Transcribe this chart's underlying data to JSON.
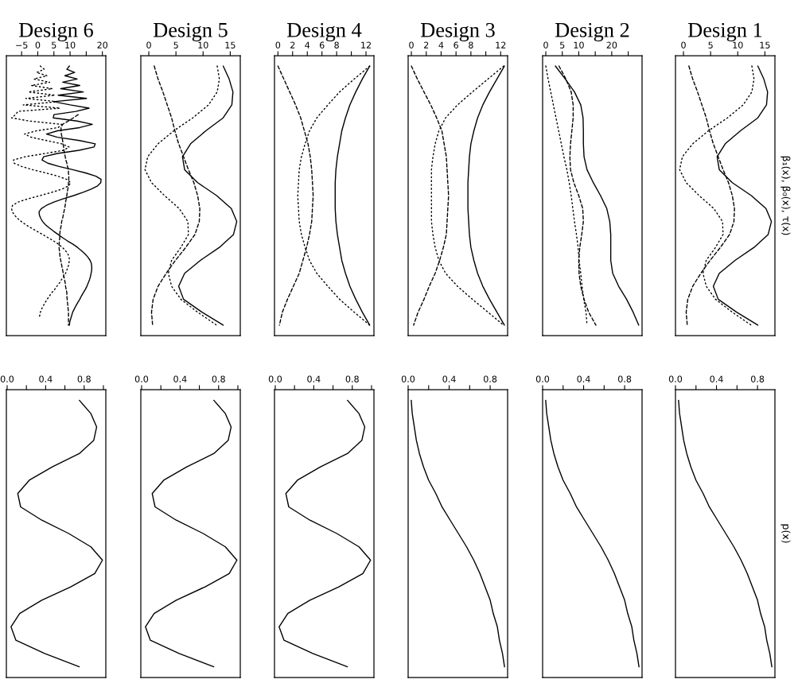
{
  "chart_data": [
    {
      "type": "line",
      "title": "Design 6",
      "orientation": "horizontal",
      "tick_labels": "x",
      "xlim": [
        -9.72,
        21.06
      ],
      "xticks": [
        {
          "value": -5,
          "label": "−5"
        },
        0,
        5,
        10,
        {
          "value": 15,
          "label": null
        },
        20
      ],
      "categories": [
        null,
        null,
        null,
        null,
        null,
        null,
        null,
        null,
        null,
        null,
        null,
        null,
        null,
        null,
        null,
        null,
        null,
        null,
        null,
        null,
        null,
        null,
        null,
        null,
        null,
        null,
        null,
        null,
        null,
        null,
        null,
        null,
        null,
        null,
        null,
        null,
        null,
        null,
        null,
        null,
        null,
        null,
        null,
        null,
        null,
        null,
        null,
        null,
        null,
        null,
        null,
        null,
        null,
        null,
        null,
        null,
        null,
        null,
        null,
        null,
        null,
        null,
        null,
        null,
        null,
        null,
        null,
        null,
        null,
        null,
        null,
        null,
        null,
        null,
        null,
        null,
        null,
        null,
        null,
        null,
        null
      ],
      "series": [
        {
          "color": "#000000",
          "line_style": "solid",
          "values": [
            9.8,
            9.0,
            11.4,
            8.4,
            12.2,
            7.7,
            13.0,
            7.1,
            14.1,
            6.3,
            15.1,
            4.9,
            10.0,
            15.9,
            11.8,
            5.0,
            4.8,
            12.2,
            16.9,
            13.0,
            6.1,
            2.7,
            6.1,
            12.9,
            17.8,
            17.4,
            12.8,
            6.1,
            1.8,
            1.3,
            3.1,
            6.6,
            10.8,
            14.8,
            18.0,
            19.6,
            19.5,
            18.5,
            16.5,
            14.0,
            11.1,
            7.8,
            5.0,
            2.7,
            1.1,
            0.4,
            0.5,
            0.9,
            1.5,
            2.4,
            3.6,
            4.9,
            6.3,
            7.7,
            9.2,
            10.9,
            12.3,
            13.5,
            14.6,
            15.5,
            16.2,
            16.6,
            16.7,
            16.7,
            16.5,
            16.3,
            16.0,
            15.6,
            15.2,
            14.7,
            14.1,
            13.5,
            13.0,
            12.4,
            11.8,
            11.3,
            10.8,
            10.5,
            10.2,
            9.9,
            9.8
          ]
        },
        {
          "color": "#000000",
          "line_style": "dashed",
          "values": [
            null,
            null,
            null,
            null,
            null,
            null,
            null,
            null,
            null,
            null,
            null,
            null,
            null,
            null,
            null,
            12.5,
            11.0,
            9.4,
            7.7,
            7.2,
            7.2,
            7.3,
            7.5,
            7.7,
            7.8,
            8.0,
            8.1,
            8.3,
            8.5,
            8.7,
            9.0,
            9.2,
            9.5,
            9.5,
            9.6,
            9.6,
            9.5,
            9.5,
            9.3,
            9.1,
            9.0,
            8.8,
            8.6,
            8.5,
            8.3,
            8.1,
            7.9,
            7.7,
            7.4,
            7.3,
            7.1,
            6.9,
            6.8,
            6.8,
            6.7,
            6.6,
            6.6,
            6.7,
            6.8,
            6.9,
            7.1,
            7.3,
            7.5,
            7.7,
            7.9,
            8.1,
            8.3,
            8.5,
            8.6,
            8.8,
            9.0,
            9.0,
            9.1,
            9.2,
            9.3,
            9.4,
            9.5,
            9.5,
            9.5,
            9.5,
            9.5
          ]
        },
        {
          "color": "#000000",
          "line_style": "dotted",
          "values": [
            0.8,
            2.0,
            -0.4,
            2.9,
            -1.2,
            3.7,
            -2.0,
            4.5,
            -2.9,
            5.3,
            -3.7,
            6.1,
            -4.5,
            6.9,
            -6.1,
            -6.9,
            -8.1,
            -2.5,
            7.4,
            6.3,
            -0.4,
            -4.1,
            -2.0,
            2.7,
            7.4,
            9.7,
            8.1,
            2.3,
            -3.9,
            -7.5,
            -7.3,
            -5.0,
            -1.6,
            2.5,
            6.2,
            9.0,
            10.2,
            9.5,
            7.5,
            4.3,
            0.7,
            -3.1,
            -6.1,
            -7.8,
            -8.1,
            -7.9,
            -7.2,
            -6.3,
            -5.1,
            -3.7,
            -2.0,
            -0.3,
            1.5,
            3.2,
            4.9,
            6.4,
            7.6,
            8.6,
            9.3,
            9.7,
            9.8,
            9.6,
            9.4,
            9.0,
            8.6,
            8.0,
            7.3,
            6.7,
            5.9,
            5.2,
            4.3,
            3.6,
            2.9,
            2.3,
            1.7,
            1.2,
            0.8,
            0.6,
            0.4,
            null,
            null
          ]
        }
      ]
    },
    {
      "type": "line",
      "title": "Design 5",
      "orientation": "horizontal",
      "tick_labels": "x",
      "xlim": [
        -1.47,
        16.85
      ],
      "xticks": [
        0,
        5,
        10,
        15
      ],
      "categories": [
        null,
        null,
        null,
        null,
        null,
        null,
        null,
        null,
        null,
        null,
        null,
        null,
        null,
        null,
        null,
        null,
        null,
        null,
        null,
        null,
        null
      ],
      "series": [
        {
          "color": "#000000",
          "line_style": "solid",
          "values": [
            13.7,
            14.8,
            15.5,
            15.3,
            13.7,
            10.5,
            7.7,
            6.2,
            6.6,
            9.0,
            12.5,
            15.2,
            16.2,
            15.6,
            13.0,
            9.5,
            6.6,
            5.5,
            6.4,
            9.8,
            13.7
          ]
        },
        {
          "color": "#000000",
          "line_style": "dashed",
          "values": [
            1.0,
            1.7,
            2.6,
            3.4,
            4.2,
            4.8,
            5.5,
            6.4,
            7.3,
            8.3,
            9.0,
            9.4,
            9.3,
            8.5,
            6.8,
            4.9,
            3.2,
            1.7,
            0.8,
            0.5,
            0.7
          ]
        },
        {
          "color": "#000000",
          "line_style": "dotted",
          "values": [
            12.6,
            13.0,
            12.6,
            11.0,
            8.1,
            4.6,
            1.7,
            -0.2,
            -0.7,
            0.5,
            2.9,
            5.6,
            7.2,
            7.3,
            5.9,
            4.2,
            3.6,
            4.2,
            5.9,
            9.0,
            12.5
          ]
        }
      ]
    },
    {
      "type": "line",
      "title": "Design 4",
      "orientation": "horizontal",
      "tick_labels": "x",
      "xlim": [
        -0.47,
        13.08
      ],
      "xticks": [
        0,
        2,
        4,
        6,
        8,
        {
          "value": 10,
          "label": null
        },
        12
      ],
      "categories": [
        null,
        null,
        null,
        null,
        null,
        null,
        null,
        null,
        null,
        null,
        null,
        null,
        null,
        null,
        null,
        null,
        null,
        null,
        null,
        null,
        null
      ],
      "series": [
        {
          "color": "#000000",
          "line_style": "solid",
          "values": [
            12.5,
            11.5,
            10.6,
            9.8,
            9.2,
            8.7,
            8.4,
            8.1,
            7.9,
            7.8,
            7.8,
            7.8,
            7.9,
            8.1,
            8.4,
            8.7,
            9.2,
            9.8,
            10.6,
            11.5,
            12.5
          ]
        },
        {
          "color": "#000000",
          "line_style": "dashed",
          "values": [
            0,
            0.8,
            1.6,
            2.4,
            3.1,
            3.6,
            4.1,
            4.4,
            4.6,
            4.7,
            4.8,
            4.7,
            4.6,
            4.3,
            3.9,
            3.4,
            2.9,
            2.1,
            1.3,
            0.6,
            0.2
          ]
        },
        {
          "color": "#000000",
          "line_style": "dotted",
          "values": [
            12.5,
            10.4,
            8.4,
            6.8,
            5.3,
            4.3,
            3.7,
            3.2,
            2.9,
            2.8,
            2.7,
            2.8,
            2.9,
            3.2,
            3.7,
            4.3,
            5.3,
            6.8,
            8.4,
            10.4,
            12.5
          ]
        }
      ]
    },
    {
      "type": "line",
      "title": "Design 3",
      "orientation": "horizontal",
      "tick_labels": "x",
      "xlim": [
        -0.43,
        12.93
      ],
      "xticks": [
        0,
        2,
        4,
        6,
        8,
        {
          "value": 10,
          "label": null
        },
        12
      ],
      "categories": [
        null,
        null,
        null,
        null,
        null,
        null,
        null,
        null,
        null,
        null,
        null,
        null,
        null,
        null,
        null,
        null,
        null,
        null,
        null,
        null,
        null
      ],
      "series": [
        {
          "color": "#000000",
          "line_style": "solid",
          "values": [
            12.5,
            11.5,
            10.5,
            9.6,
            8.9,
            8.4,
            8.0,
            7.8,
            7.7,
            7.6,
            7.6,
            7.6,
            7.7,
            7.8,
            8.0,
            8.4,
            8.9,
            9.6,
            10.5,
            11.5,
            12.5
          ]
        },
        {
          "color": "#000000",
          "line_style": "dashed",
          "values": [
            0,
            0.8,
            1.7,
            2.6,
            3.4,
            4.1,
            4.4,
            4.7,
            4.8,
            4.9,
            5.0,
            4.9,
            4.8,
            4.7,
            4.3,
            3.8,
            3.2,
            2.4,
            1.7,
            0.9,
            0.3
          ]
        },
        {
          "color": "#000000",
          "line_style": "dotted",
          "values": [
            12.4,
            10.3,
            8.2,
            6.2,
            4.6,
            3.7,
            3.2,
            2.9,
            2.7,
            2.7,
            2.7,
            2.7,
            2.7,
            2.9,
            3.2,
            3.7,
            4.6,
            6.2,
            8.2,
            10.3,
            12.4
          ]
        }
      ]
    },
    {
      "type": "line",
      "title": "Design 2",
      "orientation": "horizontal",
      "tick_labels": "x",
      "xlim": [
        -0.97,
        29.2
      ],
      "xticks": [
        0,
        5,
        10,
        {
          "value": 15,
          "label": null
        },
        20,
        {
          "value": 25,
          "label": null
        }
      ],
      "categories": [
        null,
        null,
        null,
        null,
        null,
        null,
        null,
        null,
        null,
        null,
        null,
        null,
        null,
        null,
        null,
        null,
        null,
        null,
        null,
        null,
        null
      ],
      "series": [
        {
          "color": "#000000",
          "line_style": "solid",
          "values": [
            2.9,
            5.9,
            8.7,
            10.6,
            11.3,
            11.4,
            11.4,
            11.6,
            12.5,
            14.4,
            16.6,
            18.5,
            19.4,
            19.7,
            19.7,
            19.7,
            20.3,
            22.1,
            24.5,
            26.5,
            28.2
          ]
        },
        {
          "color": "#000000",
          "line_style": "dashed",
          "values": [
            4.0,
            6.1,
            7.7,
            8.3,
            8.3,
            7.9,
            7.5,
            7.3,
            7.5,
            8.5,
            10.0,
            11.2,
            11.4,
            10.9,
            10.3,
            10.0,
            10.1,
            10.6,
            11.6,
            13.0,
            15.2
          ]
        },
        {
          "color": "#000000",
          "line_style": "dotted",
          "values": [
            0,
            0.7,
            1.5,
            2.3,
            3.1,
            3.9,
            4.7,
            5.5,
            6.4,
            7.1,
            7.7,
            8.2,
            8.7,
            9.3,
            9.8,
            10.1,
            10.6,
            11.0,
            11.5,
            12.2,
            12.5
          ]
        }
      ]
    },
    {
      "type": "line",
      "title": "Design 1",
      "ylabel": "β₁(x), β₀(x), τ(x)",
      "orientation": "horizontal",
      "tick_labels": "x",
      "xlim": [
        -1.47,
        16.85
      ],
      "xticks": [
        0,
        5,
        10,
        15
      ],
      "categories": [
        null,
        null,
        null,
        null,
        null,
        null,
        null,
        null,
        null,
        null,
        null,
        null,
        null,
        null,
        null,
        null,
        null,
        null,
        null,
        null,
        null
      ],
      "series": [
        {
          "color": "#000000",
          "line_style": "solid",
          "values": [
            13.7,
            14.8,
            15.5,
            15.3,
            13.7,
            10.5,
            7.7,
            6.2,
            6.6,
            9.0,
            12.5,
            15.2,
            16.2,
            15.6,
            13.0,
            9.5,
            6.6,
            5.5,
            6.4,
            9.8,
            13.7
          ]
        },
        {
          "color": "#000000",
          "line_style": "dashed",
          "values": [
            1.0,
            1.7,
            2.6,
            3.4,
            4.2,
            4.8,
            5.5,
            6.4,
            7.3,
            8.3,
            9.0,
            9.4,
            9.3,
            8.5,
            6.8,
            4.9,
            3.2,
            1.7,
            0.8,
            0.5,
            0.7
          ]
        },
        {
          "color": "#000000",
          "line_style": "dotted",
          "values": [
            12.6,
            13.0,
            12.6,
            11.0,
            8.1,
            4.6,
            1.7,
            -0.2,
            -0.7,
            0.5,
            2.9,
            5.6,
            7.2,
            7.3,
            5.9,
            4.2,
            3.6,
            4.2,
            5.9,
            9.0,
            12.5
          ]
        }
      ]
    },
    {
      "type": "line",
      "orientation": "horizontal",
      "tick_labels": "x",
      "xlim": [
        -0.008,
        1.025
      ],
      "xticks": [
        {
          "value": 0,
          "label": "0.0"
        },
        {
          "value": 0.2,
          "label": null
        },
        0.4,
        {
          "value": 0.6,
          "label": null
        },
        0.8,
        {
          "value": 1,
          "label": null
        }
      ],
      "categories": [
        null,
        null,
        null,
        null,
        null,
        null,
        null,
        null,
        null,
        null,
        null,
        null,
        null,
        null,
        null,
        null,
        null,
        null,
        null,
        null,
        null
      ],
      "series": [
        {
          "color": "#000000",
          "line_style": "solid",
          "values": [
            0.75,
            0.87,
            0.93,
            0.9,
            0.75,
            0.47,
            0.23,
            0.11,
            0.14,
            0.36,
            0.64,
            0.87,
            0.99,
            0.91,
            0.66,
            0.36,
            0.13,
            0.04,
            0.09,
            0.39,
            0.75
          ]
        }
      ]
    },
    {
      "type": "line",
      "orientation": "horizontal",
      "tick_labels": "x",
      "xlim": [
        -0.008,
        1.025
      ],
      "xticks": [
        {
          "value": 0,
          "label": "0.0"
        },
        {
          "value": 0.2,
          "label": null
        },
        0.4,
        {
          "value": 0.6,
          "label": null
        },
        0.8,
        {
          "value": 1,
          "label": null
        }
      ],
      "categories": [
        null,
        null,
        null,
        null,
        null,
        null,
        null,
        null,
        null,
        null,
        null,
        null,
        null,
        null,
        null,
        null,
        null,
        null,
        null,
        null,
        null
      ],
      "series": [
        {
          "color": "#000000",
          "line_style": "solid",
          "values": [
            0.75,
            0.87,
            0.93,
            0.9,
            0.75,
            0.47,
            0.23,
            0.11,
            0.14,
            0.36,
            0.64,
            0.87,
            0.99,
            0.91,
            0.66,
            0.36,
            0.13,
            0.04,
            0.09,
            0.39,
            0.75
          ]
        }
      ]
    },
    {
      "type": "line",
      "orientation": "horizontal",
      "tick_labels": "x",
      "xlim": [
        -0.008,
        1.025
      ],
      "xticks": [
        {
          "value": 0,
          "label": "0.0"
        },
        {
          "value": 0.2,
          "label": null
        },
        0.4,
        {
          "value": 0.6,
          "label": null
        },
        0.8,
        {
          "value": 1,
          "label": null
        }
      ],
      "categories": [
        null,
        null,
        null,
        null,
        null,
        null,
        null,
        null,
        null,
        null,
        null,
        null,
        null,
        null,
        null,
        null,
        null,
        null,
        null,
        null,
        null
      ],
      "series": [
        {
          "color": "#000000",
          "line_style": "solid",
          "values": [
            0.75,
            0.87,
            0.93,
            0.9,
            0.75,
            0.47,
            0.23,
            0.11,
            0.14,
            0.36,
            0.64,
            0.87,
            0.99,
            0.91,
            0.66,
            0.36,
            0.13,
            0.04,
            0.09,
            0.39,
            0.75
          ]
        }
      ]
    },
    {
      "type": "line",
      "orientation": "horizontal",
      "tick_labels": "x",
      "xlim": [
        0,
        0.97
      ],
      "xticks": [
        {
          "value": 0,
          "label": "0.0"
        },
        {
          "value": 0.2,
          "label": null
        },
        0.4,
        {
          "value": 0.6,
          "label": null
        },
        0.8
      ],
      "categories": [
        null,
        null,
        null,
        null,
        null,
        null,
        null,
        null,
        null,
        null,
        null,
        null,
        null,
        null,
        null,
        null,
        null,
        null,
        null,
        null,
        null
      ],
      "series": [
        {
          "color": "#000000",
          "line_style": "solid",
          "values": [
            0.03,
            0.04,
            0.06,
            0.08,
            0.11,
            0.15,
            0.2,
            0.27,
            0.33,
            0.41,
            0.49,
            0.57,
            0.64,
            0.7,
            0.75,
            0.8,
            0.83,
            0.87,
            0.89,
            0.92,
            0.94
          ]
        }
      ]
    },
    {
      "type": "line",
      "orientation": "horizontal",
      "tick_labels": "x",
      "xlim": [
        0,
        0.97
      ],
      "xticks": [
        {
          "value": 0,
          "label": "0.0"
        },
        {
          "value": 0.2,
          "label": null
        },
        0.4,
        {
          "value": 0.6,
          "label": null
        },
        0.8
      ],
      "categories": [
        null,
        null,
        null,
        null,
        null,
        null,
        null,
        null,
        null,
        null,
        null,
        null,
        null,
        null,
        null,
        null,
        null,
        null,
        null,
        null,
        null
      ],
      "series": [
        {
          "color": "#000000",
          "line_style": "solid",
          "values": [
            0.03,
            0.04,
            0.06,
            0.08,
            0.11,
            0.15,
            0.2,
            0.27,
            0.33,
            0.41,
            0.49,
            0.57,
            0.64,
            0.7,
            0.75,
            0.8,
            0.83,
            0.87,
            0.89,
            0.92,
            0.94
          ]
        }
      ]
    },
    {
      "type": "line",
      "ylabel": "p(x)",
      "orientation": "horizontal",
      "tick_labels": "x",
      "xlim": [
        0,
        0.97
      ],
      "xticks": [
        {
          "value": 0,
          "label": "0.0"
        },
        {
          "value": 0.2,
          "label": null
        },
        0.4,
        {
          "value": 0.6,
          "label": null
        },
        0.8
      ],
      "categories": [
        null,
        null,
        null,
        null,
        null,
        null,
        null,
        null,
        null,
        null,
        null,
        null,
        null,
        null,
        null,
        null,
        null,
        null,
        null,
        null,
        null
      ],
      "series": [
        {
          "color": "#000000",
          "line_style": "solid",
          "values": [
            0.03,
            0.04,
            0.06,
            0.08,
            0.11,
            0.15,
            0.2,
            0.27,
            0.33,
            0.41,
            0.49,
            0.57,
            0.64,
            0.7,
            0.75,
            0.8,
            0.83,
            0.87,
            0.89,
            0.92,
            0.94
          ]
        }
      ]
    }
  ]
}
